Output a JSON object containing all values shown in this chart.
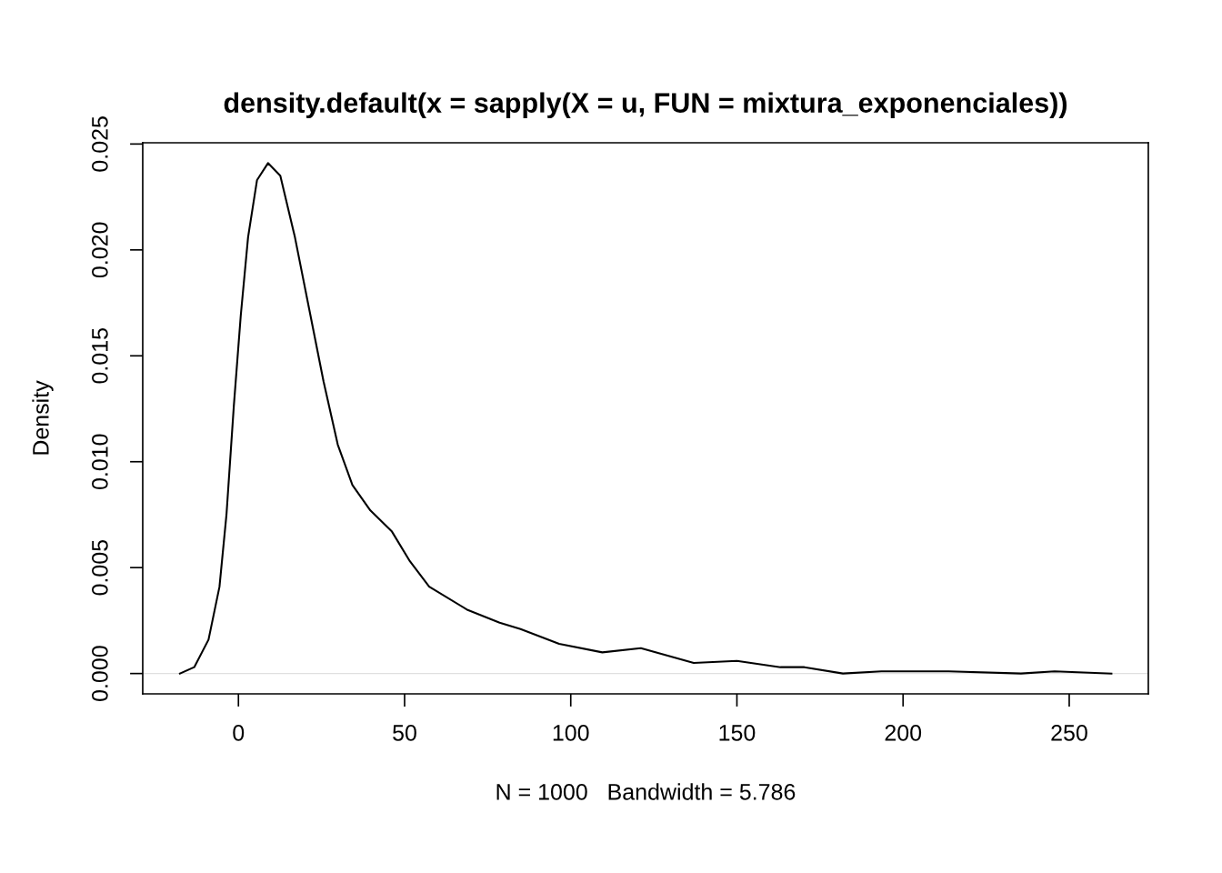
{
  "chart_data": {
    "type": "line",
    "title": "density.default(x = sapply(X = u, FUN = mixtura_exponenciales))",
    "xlabel": "N = 1000   Bandwidth = 5.786",
    "ylabel": "Density",
    "series": [
      {
        "color": "#000000",
        "x": [
          -17.6,
          -13.3,
          -9.0,
          -5.7,
          -3.6,
          -1.4,
          0.7,
          2.9,
          5.6,
          8.9,
          12.6,
          17.0,
          21.3,
          25.6,
          29.9,
          34.3,
          39.7,
          46.2,
          51.6,
          57.4,
          69.0,
          78.6,
          84.9,
          96.5,
          109.5,
          121.1,
          137.0,
          150.0,
          163.1,
          170.3,
          181.9,
          193.5,
          203.6,
          213.7,
          235.5,
          245.6,
          262.7
        ],
        "values": [
          0.0,
          0.0003,
          0.0016,
          0.0041,
          0.0075,
          0.0126,
          0.0169,
          0.0206,
          0.0233,
          0.0241,
          0.0235,
          0.0206,
          0.0172,
          0.0138,
          0.0108,
          0.0089,
          0.0077,
          0.0067,
          0.0053,
          0.0041,
          0.003,
          0.0024,
          0.0021,
          0.0014,
          0.001,
          0.0012,
          0.0005,
          0.0006,
          0.0003,
          0.0003,
          0.0,
          0.0001,
          0.0001,
          0.0001,
          0.0,
          0.0001,
          0.0
        ]
      }
    ],
    "xlim": [
      -28.8,
      273.8
    ],
    "ylim": [
      -0.00096,
      0.02506
    ],
    "xticks": [
      0,
      50,
      100,
      150,
      200,
      250
    ],
    "yticks": [
      {
        "value": 0,
        "label": "0.000"
      },
      {
        "value": 0.005,
        "label": "0.005"
      },
      {
        "value": 0.01,
        "label": "0.010"
      },
      {
        "value": 0.015,
        "label": "0.015"
      },
      {
        "value": 0.02,
        "label": "0.020"
      },
      {
        "value": 0.025,
        "label": "0.025"
      }
    ],
    "ref_lines": [
      {
        "axis": "y",
        "value": 0,
        "color": "#e0e0e0"
      }
    ],
    "grid": false,
    "line_style": "solid"
  }
}
